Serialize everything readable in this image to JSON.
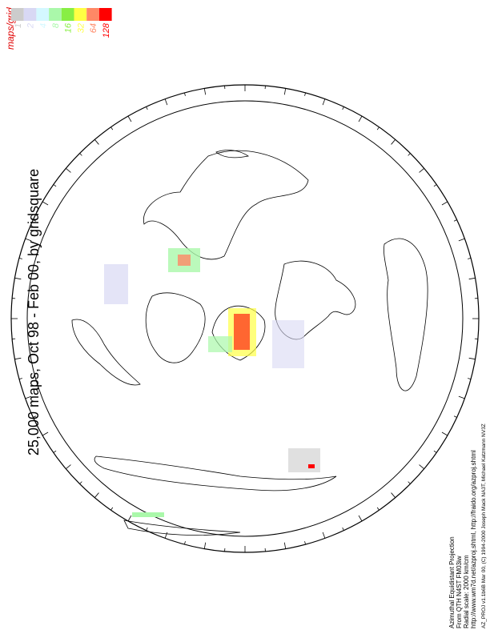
{
  "title": "25,000 maps, Oct 98 - Feb 00, by gridsquare",
  "legend": {
    "title": "maps/grid",
    "items": [
      {
        "label": 1,
        "color": "#cccccc"
      },
      {
        "label": 2,
        "color": "#d8d8f4"
      },
      {
        "label": 4,
        "color": "#d4f8ff"
      },
      {
        "label": 8,
        "color": "#aaf8aa"
      },
      {
        "label": 16,
        "color": "#88ee44"
      },
      {
        "label": 32,
        "color": "#ffff44"
      },
      {
        "label": 64,
        "color": "#ff8866"
      },
      {
        "label": 128,
        "color": "#ff0000"
      }
    ]
  },
  "footer": [
    "Azimuthal Equidistant Projection",
    "From QTH N4ST FM03iw",
    "Radial scale: 2000 km/cm",
    "http://www.wm7d.net/azproj.shtml, http://fraido.org/azproj.shtml",
    "AZ_PROJ v1.1b6B Mar 00, (C) 1994-2000 Joseph Mack NA3T, Michael Katzmann NV3Z"
  ]
}
